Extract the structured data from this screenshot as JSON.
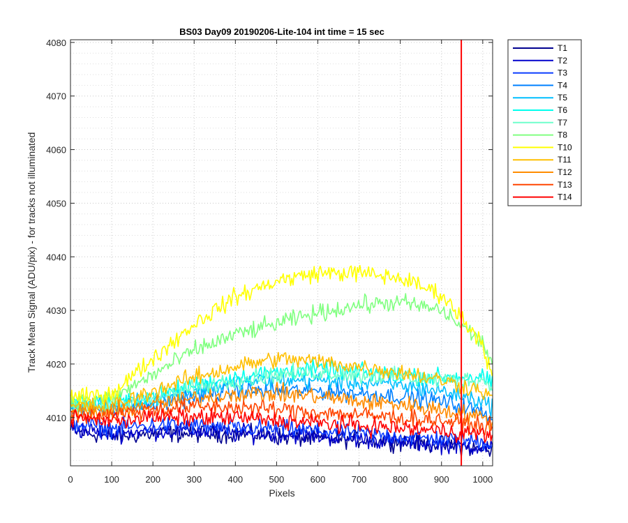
{
  "chart_data": {
    "type": "line",
    "title": "BS03 Day09 20190206-Lite-104 int time = 15 sec",
    "xlabel": "Pixels",
    "ylabel": "Track Mean Signal (ADU/pix) - for tracks not illuminated",
    "xlim": [
      0,
      1024
    ],
    "ylim": [
      4001,
      4080.5
    ],
    "xticks": [
      0,
      100,
      200,
      300,
      400,
      500,
      600,
      700,
      800,
      900,
      1000
    ],
    "yticks": [
      4010,
      4020,
      4030,
      4040,
      4050,
      4060,
      4070,
      4080
    ],
    "grid": true,
    "minor_grid": true,
    "legend_position": "outside-top-right",
    "vertical_marker": {
      "x": 948,
      "color": "#ff0000"
    },
    "series": [
      {
        "name": "T1",
        "color": "#00008f",
        "x": [
          0,
          100,
          200,
          300,
          400,
          500,
          600,
          700,
          800,
          900,
          1000,
          1024
        ],
        "y": [
          4007.5,
          4006.5,
          4007,
          4007,
          4007,
          4006.5,
          4006,
          4006,
          4005.5,
          4005,
          4004,
          4004
        ]
      },
      {
        "name": "T2",
        "color": "#0000cc",
        "x": [
          0,
          100,
          200,
          300,
          400,
          500,
          600,
          700,
          800,
          900,
          1000,
          1024
        ],
        "y": [
          4008,
          4007,
          4007.5,
          4007.5,
          4007,
          4007,
          4006.5,
          4006,
          4005.5,
          4005,
          4004.5,
          4004.5
        ]
      },
      {
        "name": "T3",
        "color": "#0a3cff",
        "x": [
          0,
          100,
          200,
          300,
          400,
          500,
          600,
          700,
          800,
          900,
          1000,
          1024
        ],
        "y": [
          4009,
          4008,
          4008.5,
          4008.5,
          4008,
          4008,
          4007.5,
          4007,
          4006.5,
          4006,
          4005.5,
          4005
        ]
      },
      {
        "name": "T4",
        "color": "#0080ff",
        "x": [
          0,
          100,
          200,
          300,
          400,
          500,
          600,
          700,
          800,
          900,
          1000,
          1024
        ],
        "y": [
          4012,
          4011.5,
          4012.5,
          4014,
          4015,
          4015,
          4015,
          4014.5,
          4014,
          4013,
          4011,
          4010
        ]
      },
      {
        "name": "T5",
        "color": "#00bfff",
        "x": [
          0,
          100,
          200,
          300,
          400,
          500,
          600,
          700,
          800,
          900,
          1000,
          1024
        ],
        "y": [
          4012.5,
          4012,
          4013.5,
          4015,
          4016.5,
          4017,
          4017,
          4016.5,
          4016,
          4015,
          4013,
          4012
        ]
      },
      {
        "name": "T6",
        "color": "#00ffee",
        "x": [
          0,
          100,
          200,
          300,
          400,
          500,
          600,
          700,
          800,
          900,
          1000,
          1024
        ],
        "y": [
          4013,
          4012.5,
          4014,
          4016,
          4017.5,
          4018.5,
          4019,
          4018.5,
          4018,
          4017.5,
          4017.5,
          4016
        ]
      },
      {
        "name": "T7",
        "color": "#6effcc",
        "x": [
          0,
          100,
          200,
          300,
          400,
          500,
          600,
          700,
          800,
          900,
          1000,
          1024
        ],
        "y": [
          4012.5,
          4012,
          4013.5,
          4015.5,
          4017,
          4018,
          4018.5,
          4018,
          4017.5,
          4017,
          4017,
          4015.5
        ]
      },
      {
        "name": "T8",
        "color": "#80ff80",
        "x": [
          0,
          100,
          200,
          300,
          400,
          500,
          600,
          700,
          800,
          900,
          1000,
          1024
        ],
        "y": [
          4013,
          4013.5,
          4018,
          4022.5,
          4025.5,
          4027.5,
          4029.5,
          4031,
          4031.5,
          4030,
          4024,
          4020
        ]
      },
      {
        "name": "T10",
        "color": "#ffff00",
        "x": [
          0,
          100,
          200,
          300,
          400,
          500,
          600,
          700,
          800,
          900,
          1000,
          1024
        ],
        "y": [
          4013.5,
          4014.5,
          4021,
          4027.5,
          4032.5,
          4035.5,
          4037,
          4037,
          4036,
          4033,
          4024,
          4017
        ]
      },
      {
        "name": "T11",
        "color": "#ffbf00",
        "x": [
          0,
          100,
          200,
          300,
          400,
          500,
          600,
          700,
          800,
          900,
          1000,
          1024
        ],
        "y": [
          4012,
          4012,
          4015,
          4017.5,
          4019.5,
          4021,
          4020.5,
          4019.5,
          4018.5,
          4017,
          4015,
          4013
        ]
      },
      {
        "name": "T12",
        "color": "#ff8c00",
        "x": [
          0,
          100,
          200,
          300,
          400,
          500,
          600,
          700,
          800,
          900,
          1000,
          1024
        ],
        "y": [
          4011,
          4011,
          4012.5,
          4013.5,
          4014.5,
          4014.5,
          4014,
          4013,
          4012.5,
          4011.5,
          4010,
          4009
        ]
      },
      {
        "name": "T13",
        "color": "#ff4500",
        "x": [
          0,
          100,
          200,
          300,
          400,
          500,
          600,
          700,
          800,
          900,
          1000,
          1024
        ],
        "y": [
          4010.5,
          4010.5,
          4011.5,
          4012,
          4012,
          4011.5,
          4011,
          4010.5,
          4010,
          4009.5,
          4008.5,
          4008
        ]
      },
      {
        "name": "T14",
        "color": "#ff0000",
        "x": [
          0,
          100,
          200,
          300,
          400,
          500,
          600,
          700,
          800,
          900,
          1000,
          1024
        ],
        "y": [
          4010,
          4009.5,
          4010,
          4010,
          4010,
          4009.5,
          4009,
          4008.5,
          4008,
          4007.5,
          4007,
          4006.5
        ]
      }
    ]
  }
}
